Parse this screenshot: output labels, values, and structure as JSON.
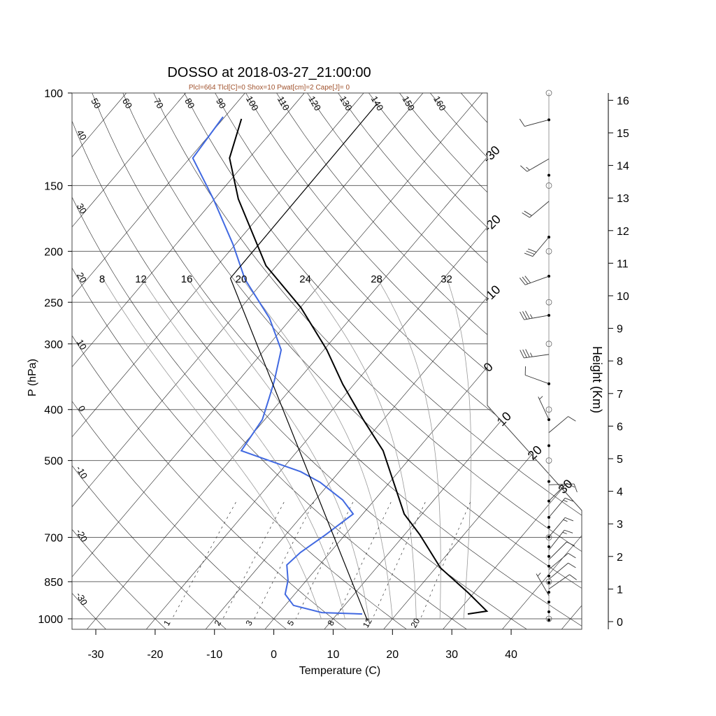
{
  "chart_data": {
    "type": "line",
    "subtype": "skew-t-log-p",
    "title": "DOSSO at 2018-03-27_21:00:00",
    "subtitle": "Plcl=664 Tlcl[C]=0 Shox=10 Pwat[cm]=2 Cape[J]= 0",
    "subtitle_color": "#a0522d",
    "xlabel": "Temperature (C)",
    "ylabel": "P (hPa)",
    "y2label": "Height (Km)",
    "xlim": [
      -34,
      52
    ],
    "ylim": [
      1050,
      100
    ],
    "pressure_ticks": [
      100,
      150,
      200,
      250,
      300,
      400,
      500,
      700,
      850,
      1000
    ],
    "temperature_ticks": [
      -30,
      -20,
      -10,
      0,
      10,
      20,
      30,
      40
    ],
    "height_ticks": [
      0,
      1,
      2,
      3,
      4,
      5,
      6,
      7,
      8,
      9,
      10,
      11,
      12,
      13,
      14,
      15,
      16
    ],
    "isotherm_labels": [
      -30,
      -20,
      -10,
      0,
      10,
      20,
      30
    ],
    "dry_adiabat_top_labels": [
      50,
      60,
      70,
      80,
      90,
      100,
      110,
      120,
      130,
      140,
      150,
      160
    ],
    "dry_adiabat_left_labels": [
      40,
      30,
      20,
      10,
      0,
      -10,
      -20,
      -30
    ],
    "moist_adiabat_labels": [
      8,
      12,
      16,
      20,
      24,
      28,
      32
    ],
    "mixing_ratio_labels": [
      1,
      2,
      3,
      5,
      8,
      12,
      20
    ],
    "series": [
      {
        "name": "Temperature",
        "color": "#000000",
        "p": [
          979,
          967,
          893,
          800,
          692,
          632,
          479,
          418,
          358,
          308,
          256,
          213,
          159,
          133,
          112
        ],
        "t": [
          32.0,
          34.8,
          29.1,
          20.8,
          12.6,
          7.0,
          -5.6,
          -13.4,
          -21.9,
          -29.5,
          -39.9,
          -51.8,
          -66.0,
          -73.3,
          -76.9
        ]
      },
      {
        "name": "Dewpoint",
        "color": "#4169e1",
        "p": [
          979,
          973,
          943,
          898,
          845,
          790,
          748,
          692,
          632,
          594,
          550,
          525,
          479,
          418,
          381,
          353,
          308,
          268,
          226,
          194,
          159,
          133,
          111
        ],
        "t": [
          14.2,
          7.2,
          1.4,
          -1.6,
          -3.1,
          -5.5,
          -5.0,
          -3.3,
          -1.6,
          -5.4,
          -11.7,
          -16.5,
          -29.5,
          -30.4,
          -32.3,
          -33.9,
          -37.2,
          -43.7,
          -53.4,
          -60.4,
          -70.2,
          -79.5,
          -80.3
        ]
      },
      {
        "name": "Parcel",
        "color": "#000000",
        "p": [
          1009,
          225,
          105
        ],
        "t": [
          16.1,
          -56.0,
          -56.2
        ]
      }
    ],
    "wind_barbs_units": "knots",
    "wind_barbs": [
      {
        "h": 15.4,
        "dir": 255,
        "spd": 10
      },
      {
        "h": 14.2,
        "dir": 240,
        "spd": 15
      },
      {
        "h": 12.9,
        "dir": 230,
        "spd": 20
      },
      {
        "h": 11.8,
        "dir": 220,
        "spd": 30
      },
      {
        "h": 10.6,
        "dir": 250,
        "spd": 30
      },
      {
        "h": 9.4,
        "dir": 260,
        "spd": 35
      },
      {
        "h": 8.2,
        "dir": 262,
        "spd": 35
      },
      {
        "h": 7.3,
        "dir": 290,
        "spd": 10
      },
      {
        "h": 6.2,
        "dir": 335,
        "spd": 5
      },
      {
        "h": 5.8,
        "dir": 50,
        "spd": 10
      },
      {
        "h": 4.2,
        "dir": 88,
        "spd": 10
      },
      {
        "h": 3.7,
        "dir": 45,
        "spd": 10
      },
      {
        "h": 3.2,
        "dir": 40,
        "spd": 15
      },
      {
        "h": 2.6,
        "dir": 40,
        "spd": 15
      },
      {
        "h": 2.2,
        "dir": 38,
        "spd": 15
      },
      {
        "h": 1.9,
        "dir": 45,
        "spd": 10
      },
      {
        "h": 1.6,
        "dir": 50,
        "spd": 10
      },
      {
        "h": 1.3,
        "dir": 50,
        "spd": 10
      },
      {
        "h": 1.0,
        "dir": 55,
        "spd": 10
      },
      {
        "h": 0.8,
        "dir": 330,
        "spd": 5
      }
    ],
    "obs_heights": [
      15.4,
      13.7,
      11.8,
      10.6,
      9.4,
      7.3,
      6.2,
      5.4,
      4.3,
      3.7,
      3.2,
      2.9,
      2.6,
      2.3,
      2.0,
      1.7,
      1.4,
      1.2,
      0.9,
      0.6,
      0.3,
      0.05
    ]
  }
}
